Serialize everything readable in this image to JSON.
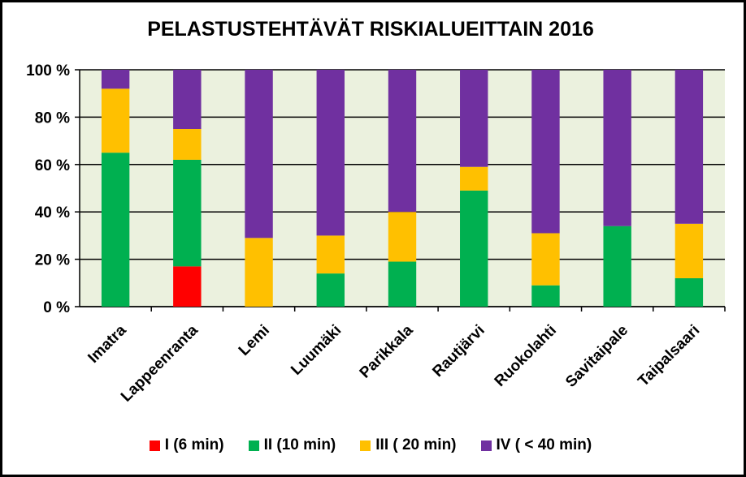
{
  "chart_data": {
    "type": "bar",
    "stacked": true,
    "title": "PELASTUSTEHTÄVÄT RISKIALUEITTAIN 2016",
    "categories": [
      "Imatra",
      "Lappeenranta",
      "Lemi",
      "Luumäki",
      "Parikkala",
      "Rautjärvi",
      "Ruokolahti",
      "Savitaipale",
      "Taipalsaari"
    ],
    "ylim": [
      0,
      100
    ],
    "yticks": [
      "0 %",
      "20 %",
      "40 %",
      "60 %",
      "80 %",
      "100 %"
    ],
    "ytick_values": [
      0,
      20,
      40,
      60,
      80,
      100
    ],
    "grid": true,
    "legend_position": "bottom",
    "plot_background": "#EBF1DE",
    "series": [
      {
        "name": "I (6 min)",
        "color": "#FF0000",
        "values": [
          0,
          17,
          0,
          0,
          0,
          0,
          0,
          0,
          0
        ]
      },
      {
        "name": "II (10 min)",
        "color": "#00B050",
        "values": [
          65,
          45,
          0,
          14,
          19,
          49,
          9,
          34,
          12
        ]
      },
      {
        "name": "III ( 20 min)",
        "color": "#FFC000",
        "values": [
          27,
          13,
          29,
          16,
          21,
          10,
          22,
          0,
          23
        ]
      },
      {
        "name": "IV ( < 40 min)",
        "color": "#7030A0",
        "values": [
          8,
          25,
          71,
          70,
          60,
          41,
          69,
          66,
          65
        ]
      }
    ]
  }
}
